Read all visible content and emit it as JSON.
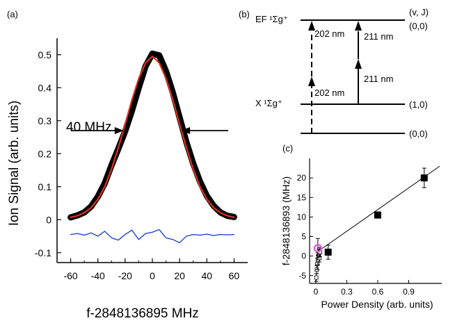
{
  "chart_data": [
    {
      "panel": "(a)",
      "type": "line",
      "xlabel": "f-2848136895 MHz",
      "ylabel": "Ion Signal (arb. units)",
      "xlim": [
        -70,
        70
      ],
      "ylim": [
        -0.13,
        0.55
      ],
      "xticks": [
        -60,
        -40,
        -20,
        0,
        20,
        40,
        60
      ],
      "yticks": [
        -0.1,
        0,
        0.1,
        0.2,
        0.3,
        0.4,
        0.5
      ],
      "annotation": "40 MHz",
      "fwhm_marks": [
        -20,
        20
      ],
      "fwhm_level": 0.27,
      "series": [
        {
          "role": "data",
          "color": "#000000",
          "x": [
            -60,
            -55,
            -50,
            -45,
            -40,
            -35,
            -30,
            -25,
            -20,
            -15,
            -10,
            -5,
            0,
            5,
            10,
            15,
            20,
            25,
            30,
            35,
            40,
            45,
            50,
            55,
            60
          ],
          "y": [
            0.007,
            0.013,
            0.022,
            0.04,
            0.07,
            0.11,
            0.165,
            0.215,
            0.268,
            0.33,
            0.4,
            0.465,
            0.503,
            0.498,
            0.45,
            0.385,
            0.31,
            0.235,
            0.17,
            0.115,
            0.072,
            0.042,
            0.022,
            0.012,
            0.008
          ]
        },
        {
          "role": "fit",
          "color": "#e0321e",
          "x": [
            -60,
            -55,
            -50,
            -45,
            -40,
            -35,
            -30,
            -25,
            -20,
            -15,
            -10,
            -5,
            0,
            5,
            10,
            15,
            20,
            25,
            30,
            35,
            40,
            45,
            50,
            55,
            60
          ],
          "y": [
            0.007,
            0.012,
            0.021,
            0.036,
            0.062,
            0.1,
            0.153,
            0.218,
            0.29,
            0.363,
            0.428,
            0.475,
            0.495,
            0.475,
            0.428,
            0.363,
            0.29,
            0.218,
            0.153,
            0.1,
            0.062,
            0.036,
            0.021,
            0.012,
            0.007
          ]
        },
        {
          "role": "residual",
          "color": "#2348d4",
          "x": [
            -60,
            -55,
            -50,
            -45,
            -40,
            -35,
            -30,
            -25,
            -20,
            -15,
            -10,
            -5,
            0,
            5,
            10,
            15,
            20,
            25,
            30,
            35,
            40,
            45,
            50,
            55,
            60
          ],
          "y": [
            -0.045,
            -0.042,
            -0.047,
            -0.04,
            -0.05,
            -0.035,
            -0.055,
            -0.062,
            -0.045,
            -0.032,
            -0.06,
            -0.042,
            -0.038,
            -0.03,
            -0.055,
            -0.06,
            -0.07,
            -0.05,
            -0.045,
            -0.047,
            -0.044,
            -0.048,
            -0.045,
            -0.046,
            -0.045
          ]
        }
      ]
    },
    {
      "panel": "(b)",
      "type": "diagram",
      "states": [
        {
          "label": "EF ¹Σg⁺",
          "vj": "(0,0)"
        },
        {
          "label": "X ¹Σg⁺",
          "vj": "(1,0)"
        },
        {
          "label": "",
          "vj": "(0,0)"
        }
      ],
      "header": "(v, J)",
      "transitions": [
        "202 nm",
        "202 nm",
        "211 nm",
        "211 nm"
      ]
    },
    {
      "panel": "(c)",
      "type": "scatter",
      "xlabel": "Power Density (arb. units)",
      "ylabel": "f-2848136893 (MHz)",
      "xlim": [
        -0.06,
        1.22
      ],
      "ylim": [
        -7,
        25
      ],
      "xticks": [
        0,
        0.3,
        0.6,
        0.9
      ],
      "yticks": [
        -5,
        0,
        5,
        10,
        15,
        20
      ],
      "fit_line": {
        "x": [
          0,
          1.2
        ],
        "y": [
          0.8,
          23.0
        ]
      },
      "series": [
        {
          "role": "filled",
          "x": [
            0.12,
            0.6,
            1.05
          ],
          "y": [
            1.0,
            10.5,
            20.0
          ],
          "err": [
            1.8,
            0.8,
            2.5
          ]
        },
        {
          "role": "open",
          "x": [
            0.005,
            0.01,
            0.015,
            0.02,
            0.025,
            0.03,
            0.035,
            0.04
          ],
          "y": [
            -5.5,
            -3.5,
            -2.0,
            -1.0,
            0.0,
            0.5,
            -0.5,
            1.0
          ],
          "err": [
            1.0,
            1.0,
            1.5,
            1.2,
            1.0,
            1.3,
            1.0,
            1.2
          ]
        },
        {
          "role": "circle",
          "color": "#e060e0",
          "x": [
            0.02
          ],
          "y": [
            2.0
          ],
          "err": [
            2.5
          ]
        }
      ]
    }
  ]
}
